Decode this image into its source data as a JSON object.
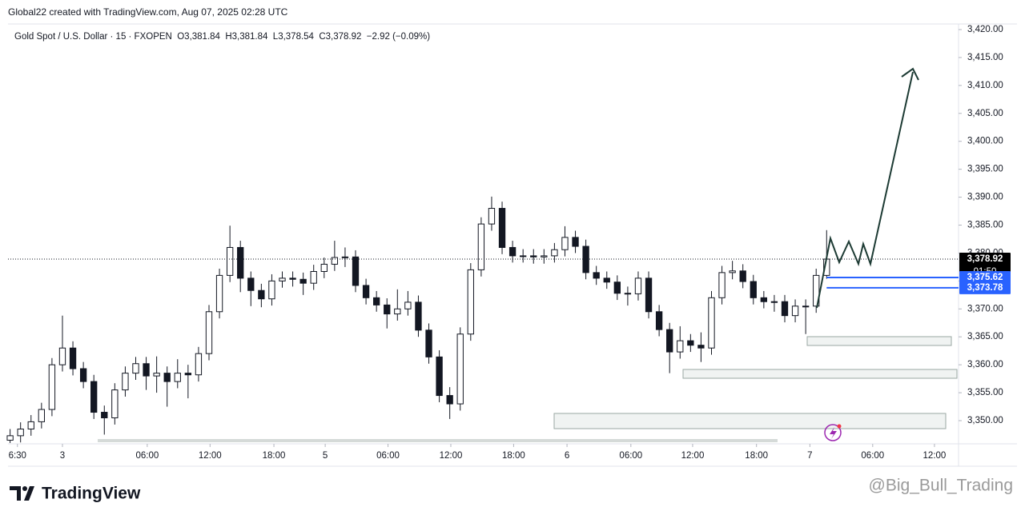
{
  "chart_data": {
    "type": "candlestick",
    "title": "Global22 created with TradingView.com, Aug 07, 2025 02:28 UTC",
    "subtitle": "Gold Spot / U.S. Dollar · 15 · FXOPEN  O3,381.84  H3,381.84  L3,378.54  C3,378.92  −2.92 (−0.09%)",
    "brand": "TradingView",
    "watermark": "@Big_Bull_Trading",
    "up_color": "#ffffff",
    "down_color": "#131722",
    "wick_color": "#131722",
    "grid": false,
    "xlim": [
      -5.2,
      85.6
    ],
    "ylim": [
      3345.85,
      3421
    ],
    "xticks": [
      {
        "value": -4.3,
        "label": "6:30"
      },
      {
        "value": 0,
        "label": "3"
      },
      {
        "value": 8.1,
        "label": "06:00"
      },
      {
        "value": 14.1,
        "label": "12:00"
      },
      {
        "value": 20.2,
        "label": "18:00"
      },
      {
        "value": 25.1,
        "label": "5"
      },
      {
        "value": 31.1,
        "label": "06:00"
      },
      {
        "value": 37.1,
        "label": "12:00"
      },
      {
        "value": 43.1,
        "label": "18:00"
      },
      {
        "value": 48.2,
        "label": "6"
      },
      {
        "value": 54.3,
        "label": "06:00"
      },
      {
        "value": 60.2,
        "label": "12:00"
      },
      {
        "value": 66.3,
        "label": "18:00"
      },
      {
        "value": 71.4,
        "label": "7"
      },
      {
        "value": 77.4,
        "label": "06:00"
      },
      {
        "value": 83.3,
        "label": "12:00"
      }
    ],
    "yticks": [
      {
        "value": 3350,
        "label": "3,350.00"
      },
      {
        "value": 3355,
        "label": "3,355.00"
      },
      {
        "value": 3360,
        "label": "3,360.00"
      },
      {
        "value": 3365,
        "label": "3,365.00"
      },
      {
        "value": 3370,
        "label": "3,370.00"
      },
      {
        "value": 3375,
        "label": "3,375.00"
      },
      {
        "value": 3380,
        "label": "3,380.00"
      },
      {
        "value": 3385,
        "label": "3,385.00"
      },
      {
        "value": 3390,
        "label": "3,390.00"
      },
      {
        "value": 3395,
        "label": "3,395.00"
      },
      {
        "value": 3400,
        "label": "3,400.00"
      },
      {
        "value": 3405,
        "label": "3,405.00"
      },
      {
        "value": 3410,
        "label": "3,410.00"
      },
      {
        "value": 3415,
        "label": "3,415.00"
      },
      {
        "value": 3420,
        "label": "3,420.00"
      }
    ],
    "price_markers": [
      {
        "value": 3378.92,
        "label": "3,378.92",
        "countdown": "01:50",
        "color": "#000000"
      },
      {
        "value": 3375.62,
        "label": "3,375.62",
        "color": "#2962ff"
      },
      {
        "value": 3373.78,
        "label": "3,373.78",
        "color": "#2962ff"
      }
    ],
    "x": [
      -5,
      -4,
      -3,
      -2,
      -1,
      0,
      1,
      2,
      3,
      4,
      5,
      6,
      7,
      8,
      9,
      10,
      11,
      12,
      13,
      14,
      15,
      16,
      17,
      18,
      19,
      20,
      21,
      22,
      23,
      24,
      25,
      26,
      27,
      28,
      29,
      30,
      31,
      32,
      33,
      34,
      35,
      36,
      37,
      38,
      39,
      40,
      41,
      42,
      43,
      44,
      45,
      46,
      47,
      48,
      49,
      50,
      51,
      52,
      53,
      54,
      55,
      56,
      57,
      58,
      59,
      60,
      61,
      62,
      63,
      64,
      65,
      66,
      67,
      68,
      69,
      70,
      71,
      72,
      73
    ],
    "open": [
      3346.5,
      3347.3,
      3348.5,
      3349.8,
      3352,
      3360,
      3363,
      3359.3,
      3357,
      3351.5,
      3350.5,
      3355.5,
      3358.5,
      3360.2,
      3358,
      3358.5,
      3357,
      3358.5,
      3358.2,
      3362,
      3369.5,
      3376,
      3381,
      3375.5,
      3373.3,
      3371.8,
      3375,
      3375.5,
      3375.3,
      3374.6,
      3376.7,
      3378,
      3379.2,
      3379.3,
      3374.2,
      3372,
      3370.7,
      3369.1,
      3370,
      3371.2,
      3366.2,
      3361.4,
      3354.5,
      3353,
      3365.5,
      3377,
      3385.2,
      3388,
      3381,
      3379.5,
      3379.5,
      3379.3,
      3379.5,
      3380.6,
      3382.8,
      3381.2,
      3376.5,
      3375.5,
      3374.8,
      3372.8,
      3372.7,
      3375.5,
      3369.5,
      3366.3,
      3362.3,
      3364.3,
      3363.5,
      3363,
      3372,
      3376.5,
      3376.8,
      3374.9,
      3372,
      3371.3,
      3371.3,
      3368.8,
      3370.5,
      3370.5,
      3376
    ],
    "high": [
      3348.5,
      3349.7,
      3351,
      3353.2,
      3361.2,
      3368.8,
      3364.2,
      3360.5,
      3358.2,
      3352.7,
      3356.7,
      3359.7,
      3361.4,
      3361.4,
      3361.5,
      3359.7,
      3361,
      3360,
      3363.2,
      3370.7,
      3377.2,
      3384.9,
      3382.2,
      3376.7,
      3374.5,
      3376.2,
      3376.7,
      3376.7,
      3376.5,
      3377.9,
      3379.2,
      3382.2,
      3381,
      3380.5,
      3375.4,
      3373.2,
      3371.9,
      3373.5,
      3373.2,
      3372.4,
      3367.4,
      3362.6,
      3356,
      3366.7,
      3378.2,
      3386.4,
      3390.1,
      3389.2,
      3382.2,
      3380.7,
      3380.7,
      3380.7,
      3381.8,
      3384.8,
      3384,
      3382.4,
      3377.7,
      3376.7,
      3376,
      3374,
      3376.7,
      3376.7,
      3370.7,
      3367.5,
      3366.9,
      3365.5,
      3365.8,
      3373.2,
      3377.7,
      3378.6,
      3378,
      3376.1,
      3373.2,
      3372.5,
      3372.5,
      3371.7,
      3371.7,
      3377.2,
      3384.1
    ],
    "low": [
      3346,
      3346.1,
      3347.3,
      3348.6,
      3350.8,
      3358.8,
      3358.1,
      3355.8,
      3350.3,
      3347.5,
      3349.3,
      3354.3,
      3357.3,
      3355.5,
      3355,
      3352.5,
      3355.8,
      3354,
      3357,
      3360.8,
      3368.3,
      3374.8,
      3373,
      3370.5,
      3370.3,
      3370.6,
      3373.8,
      3374,
      3372.5,
      3373.4,
      3375.5,
      3376.8,
      3377.5,
      3373,
      3370.8,
      3369.5,
      3366.5,
      3367.9,
      3368.8,
      3365,
      3360.2,
      3353.3,
      3350.3,
      3351.8,
      3364.3,
      3375.8,
      3384,
      3379.8,
      3378.3,
      3378.3,
      3378.1,
      3378.1,
      3378.3,
      3379.4,
      3380,
      3375.3,
      3374.3,
      3373.6,
      3371.6,
      3370.6,
      3371.5,
      3368.3,
      3365.1,
      3358.5,
      3361.1,
      3362.3,
      3360.5,
      3361.8,
      3370.8,
      3375.3,
      3373.7,
      3370.8,
      3370.1,
      3369.5,
      3367.6,
      3367.6,
      3365.5,
      3369.3,
      3375.4
    ],
    "close": [
      3347.3,
      3348.5,
      3349.8,
      3352,
      3360,
      3363,
      3359.3,
      3357,
      3351.5,
      3350.5,
      3355.5,
      3358.5,
      3360.2,
      3358,
      3358.5,
      3357,
      3358.5,
      3358.2,
      3362,
      3369.5,
      3376,
      3381,
      3375.5,
      3373.3,
      3371.8,
      3375,
      3375.5,
      3375.3,
      3374.6,
      3376.7,
      3378,
      3379.2,
      3379.3,
      3374.2,
      3372,
      3370.7,
      3369.1,
      3370,
      3371.2,
      3366.2,
      3361.4,
      3354.5,
      3353,
      3365.5,
      3377,
      3385.2,
      3388,
      3381,
      3379.5,
      3379.5,
      3379.3,
      3379.5,
      3380.6,
      3382.8,
      3381.2,
      3376.5,
      3375.5,
      3374.8,
      3372.8,
      3372.7,
      3375.5,
      3369.5,
      3366.3,
      3362.3,
      3364.3,
      3363.5,
      3363,
      3372,
      3376.5,
      3376.8,
      3374.9,
      3372,
      3371.3,
      3371.3,
      3368.8,
      3370.5,
      3370.5,
      3376,
      3378.92
    ]
  }
}
